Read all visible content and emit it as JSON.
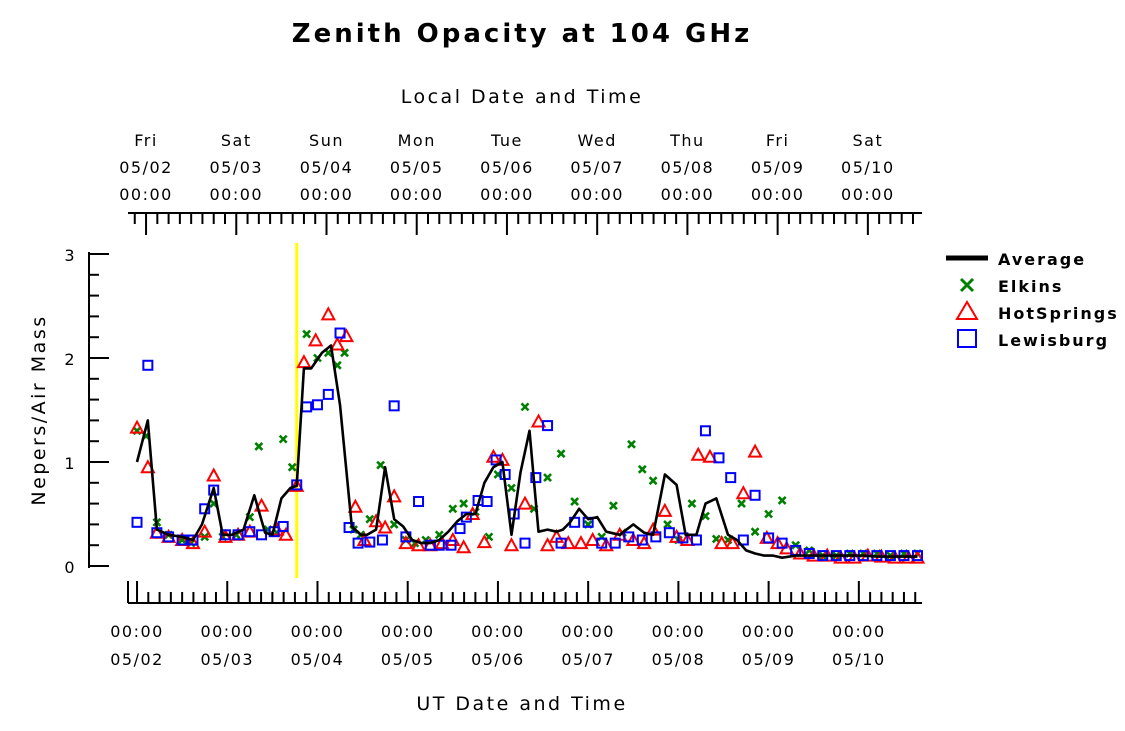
{
  "chart_data": {
    "type": "line",
    "title": "Zenith Opacity at 104 GHz",
    "top_axis_label": "Local Date and Time",
    "xlabel": "UT Date and Time",
    "ylabel": "Nepers/Air Mass",
    "ylim": [
      0,
      3
    ],
    "yticks": [
      "0",
      "1",
      "2",
      "3"
    ],
    "xlim_days": [
      -0.1,
      8.7
    ],
    "bottom_ticks": [
      {
        "day": 0,
        "time": "00:00",
        "date": "05/02"
      },
      {
        "day": 1,
        "time": "00:00",
        "date": "05/03"
      },
      {
        "day": 2,
        "time": "00:00",
        "date": "05/04"
      },
      {
        "day": 3,
        "time": "00:00",
        "date": "05/05"
      },
      {
        "day": 4,
        "time": "00:00",
        "date": "05/06"
      },
      {
        "day": 5,
        "time": "00:00",
        "date": "05/07"
      },
      {
        "day": 6,
        "time": "00:00",
        "date": "05/08"
      },
      {
        "day": 7,
        "time": "00:00",
        "date": "05/09"
      },
      {
        "day": 8,
        "time": "00:00",
        "date": "05/10"
      }
    ],
    "top_ticks": [
      {
        "day": 0.1,
        "weekday": "Fri",
        "date": "05/02",
        "time": "00:00"
      },
      {
        "day": 1.1,
        "weekday": "Sat",
        "date": "05/03",
        "time": "00:00"
      },
      {
        "day": 2.1,
        "weekday": "Sun",
        "date": "05/04",
        "time": "00:00"
      },
      {
        "day": 3.1,
        "weekday": "Mon",
        "date": "05/05",
        "time": "00:00"
      },
      {
        "day": 4.1,
        "weekday": "Tue",
        "date": "05/06",
        "time": "00:00"
      },
      {
        "day": 5.1,
        "weekday": "Wed",
        "date": "05/07",
        "time": "00:00"
      },
      {
        "day": 6.1,
        "weekday": "Thu",
        "date": "05/08",
        "time": "00:00"
      },
      {
        "day": 7.1,
        "weekday": "Fri",
        "date": "05/09",
        "time": "00:00"
      },
      {
        "day": 8.1,
        "weekday": "Sat",
        "date": "05/10",
        "time": "00:00"
      }
    ],
    "marker_line_day": 1.77,
    "marker_line_color": "#ffff00",
    "legend_position": "right",
    "series": [
      {
        "name": "Average",
        "style": "line",
        "color": "#000000",
        "x": [
          0,
          0.12,
          0.22,
          0.35,
          0.5,
          0.62,
          0.72,
          0.85,
          0.95,
          1.05,
          1.18,
          1.3,
          1.42,
          1.5,
          1.6,
          1.7,
          1.77,
          1.85,
          1.93,
          2.05,
          2.15,
          2.25,
          2.38,
          2.48,
          2.55,
          2.65,
          2.75,
          2.85,
          2.95,
          3.05,
          3.15,
          3.25,
          3.35,
          3.45,
          3.55,
          3.65,
          3.75,
          3.85,
          3.95,
          4.05,
          4.15,
          4.25,
          4.35,
          4.45,
          4.55,
          4.65,
          4.72,
          4.8,
          4.9,
          5.0,
          5.1,
          5.2,
          5.35,
          5.5,
          5.62,
          5.72,
          5.85,
          5.98,
          6.08,
          6.2,
          6.3,
          6.42,
          6.55,
          6.65,
          6.75,
          6.85,
          6.95,
          7.05,
          7.15,
          7.3,
          7.45,
          7.6,
          7.75,
          7.9,
          8.05,
          8.2,
          8.35,
          8.5,
          8.65
        ],
        "y": [
          1.0,
          1.4,
          0.35,
          0.3,
          0.28,
          0.25,
          0.4,
          0.75,
          0.3,
          0.3,
          0.35,
          0.68,
          0.32,
          0.3,
          0.65,
          0.75,
          0.77,
          1.9,
          1.9,
          2.05,
          2.12,
          1.55,
          0.38,
          0.3,
          0.3,
          0.35,
          0.95,
          0.45,
          0.38,
          0.25,
          0.22,
          0.22,
          0.25,
          0.33,
          0.43,
          0.5,
          0.5,
          0.8,
          0.95,
          1.0,
          0.3,
          0.9,
          1.3,
          0.33,
          0.35,
          0.33,
          0.35,
          0.42,
          0.55,
          0.45,
          0.47,
          0.33,
          0.3,
          0.4,
          0.32,
          0.3,
          0.88,
          0.78,
          0.3,
          0.3,
          0.6,
          0.65,
          0.3,
          0.25,
          0.15,
          0.12,
          0.1,
          0.1,
          0.08,
          0.1,
          0.1,
          0.1,
          0.1,
          0.1,
          0.1,
          0.09,
          0.09,
          0.09,
          0.09
        ]
      },
      {
        "name": "Elkins",
        "style": "x",
        "color": "#008000",
        "x": [
          0,
          0.1,
          0.22,
          0.35,
          0.5,
          0.6,
          0.75,
          0.85,
          0.95,
          1.1,
          1.25,
          1.35,
          1.45,
          1.55,
          1.62,
          1.72,
          1.88,
          2.0,
          2.12,
          2.22,
          2.3,
          2.4,
          2.48,
          2.58,
          2.7,
          2.85,
          2.98,
          3.08,
          3.2,
          3.35,
          3.5,
          3.62,
          3.75,
          3.9,
          4.0,
          4.15,
          4.3,
          4.4,
          4.55,
          4.7,
          4.85,
          5.0,
          5.15,
          5.28,
          5.38,
          5.48,
          5.6,
          5.72,
          5.88,
          6.0,
          6.15,
          6.3,
          6.42,
          6.55,
          6.7,
          6.85,
          7.0,
          7.15,
          7.3,
          7.45,
          7.6,
          7.75,
          7.9,
          8.05,
          8.2,
          8.35,
          8.5,
          8.65
        ],
        "y": [
          1.3,
          1.25,
          0.42,
          0.3,
          0.25,
          0.22,
          0.28,
          0.6,
          0.28,
          0.3,
          0.47,
          1.15,
          0.35,
          0.32,
          1.22,
          0.95,
          2.23,
          2.0,
          2.05,
          1.93,
          2.05,
          0.35,
          0.3,
          0.45,
          0.97,
          0.4,
          0.25,
          0.22,
          0.25,
          0.3,
          0.55,
          0.6,
          0.52,
          0.28,
          0.88,
          0.75,
          1.53,
          0.55,
          0.85,
          1.08,
          0.62,
          0.4,
          0.28,
          0.58,
          0.32,
          1.17,
          0.93,
          0.82,
          0.4,
          0.25,
          0.6,
          0.48,
          0.26,
          0.25,
          0.6,
          0.33,
          0.5,
          0.63,
          0.2,
          0.15,
          0.1,
          0.1,
          0.12,
          0.12,
          0.12,
          0.1,
          0.12,
          0.12
        ]
      },
      {
        "name": "HotSprings",
        "style": "triangle",
        "color": "#ff0000",
        "x": [
          0,
          0.12,
          0.22,
          0.35,
          0.5,
          0.62,
          0.75,
          0.85,
          0.98,
          1.12,
          1.25,
          1.38,
          1.55,
          1.65,
          1.77,
          1.85,
          1.98,
          2.12,
          2.22,
          2.32,
          2.42,
          2.52,
          2.65,
          2.75,
          2.85,
          2.98,
          3.12,
          3.25,
          3.38,
          3.5,
          3.62,
          3.72,
          3.85,
          3.95,
          4.05,
          4.15,
          4.3,
          4.45,
          4.55,
          4.65,
          4.78,
          4.92,
          5.05,
          5.2,
          5.35,
          5.5,
          5.62,
          5.72,
          5.85,
          5.98,
          6.1,
          6.22,
          6.35,
          6.48,
          6.6,
          6.72,
          6.85,
          6.98,
          7.1,
          7.2,
          7.35,
          7.5,
          7.65,
          7.8,
          7.95,
          8.1,
          8.25,
          8.4,
          8.55,
          8.65
        ],
        "y": [
          1.33,
          0.95,
          0.32,
          0.28,
          0.25,
          0.22,
          0.33,
          0.87,
          0.28,
          0.3,
          0.33,
          0.58,
          0.35,
          0.3,
          0.77,
          1.96,
          2.17,
          2.42,
          2.13,
          2.21,
          0.57,
          0.25,
          0.43,
          0.37,
          0.67,
          0.22,
          0.2,
          0.2,
          0.22,
          0.25,
          0.18,
          0.5,
          0.23,
          1.05,
          1.02,
          0.2,
          0.6,
          1.39,
          0.2,
          0.28,
          0.22,
          0.22,
          0.25,
          0.2,
          0.3,
          0.25,
          0.22,
          0.35,
          0.53,
          0.28,
          0.25,
          1.07,
          1.05,
          0.22,
          0.22,
          0.7,
          1.1,
          0.27,
          0.22,
          0.17,
          0.12,
          0.1,
          0.1,
          0.08,
          0.08,
          0.1,
          0.09,
          0.08,
          0.08,
          0.08
        ]
      },
      {
        "name": "Lewisburg",
        "style": "square",
        "color": "#0000ff",
        "x": [
          0,
          0.12,
          0.22,
          0.35,
          0.5,
          0.62,
          0.75,
          0.85,
          0.98,
          1.12,
          1.25,
          1.38,
          1.52,
          1.62,
          1.77,
          1.88,
          2.0,
          2.12,
          2.25,
          2.35,
          2.45,
          2.58,
          2.72,
          2.85,
          2.98,
          3.12,
          3.25,
          3.35,
          3.48,
          3.58,
          3.65,
          3.78,
          3.88,
          3.98,
          4.08,
          4.18,
          4.3,
          4.42,
          4.55,
          4.7,
          4.85,
          5.0,
          5.15,
          5.3,
          5.45,
          5.6,
          5.75,
          5.9,
          6.05,
          6.2,
          6.3,
          6.45,
          6.58,
          6.72,
          6.85,
          7.0,
          7.15,
          7.3,
          7.45,
          7.6,
          7.75,
          7.9,
          8.05,
          8.2,
          8.35,
          8.5,
          8.65
        ],
        "y": [
          0.42,
          1.93,
          0.32,
          0.28,
          0.25,
          0.25,
          0.55,
          0.73,
          0.3,
          0.3,
          0.33,
          0.3,
          0.33,
          0.38,
          0.78,
          1.53,
          1.55,
          1.65,
          2.24,
          0.37,
          0.22,
          0.23,
          0.25,
          1.54,
          0.28,
          0.62,
          0.2,
          0.2,
          0.2,
          0.36,
          0.47,
          0.63,
          0.62,
          1.02,
          0.88,
          0.5,
          0.22,
          0.85,
          1.35,
          0.22,
          0.42,
          0.42,
          0.22,
          0.22,
          0.28,
          0.25,
          0.28,
          0.32,
          0.27,
          0.25,
          1.3,
          1.04,
          0.85,
          0.25,
          0.68,
          0.27,
          0.22,
          0.15,
          0.12,
          0.1,
          0.1,
          0.1,
          0.1,
          0.1,
          0.1,
          0.1,
          0.1
        ]
      }
    ]
  }
}
